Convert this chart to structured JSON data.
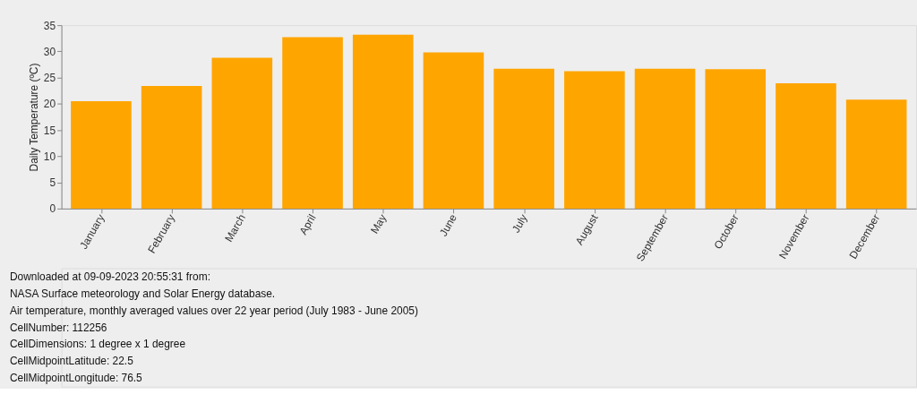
{
  "chart_data": {
    "type": "bar",
    "ylabel": "Daily Temperature (ºC)",
    "categories": [
      "January",
      "February",
      "March",
      "April",
      "May",
      "June",
      "July",
      "August",
      "September",
      "October",
      "November",
      "December"
    ],
    "values": [
      20.5,
      23.4,
      28.8,
      32.7,
      33.2,
      29.8,
      26.7,
      26.2,
      26.7,
      26.6,
      23.9,
      20.8
    ],
    "color": "#ffa500",
    "ylim": [
      0,
      35
    ],
    "yticks": [
      0,
      5,
      10,
      15,
      20,
      25,
      30,
      35
    ],
    "grid": false,
    "annotations": [
      "Downloaded at 09-09-2023 20:55:31 from:",
      "NASA Surface meteorology and Solar Energy database.",
      "Air temperature, monthly averaged values over 22 year period (July 1983 - June 2005)",
      "CellNumber: 112256",
      "CellDimensions: 1 degree x 1 degree",
      "CellMidpointLatitude: 22.5",
      "CellMidpointLongitude: 76.5"
    ]
  }
}
